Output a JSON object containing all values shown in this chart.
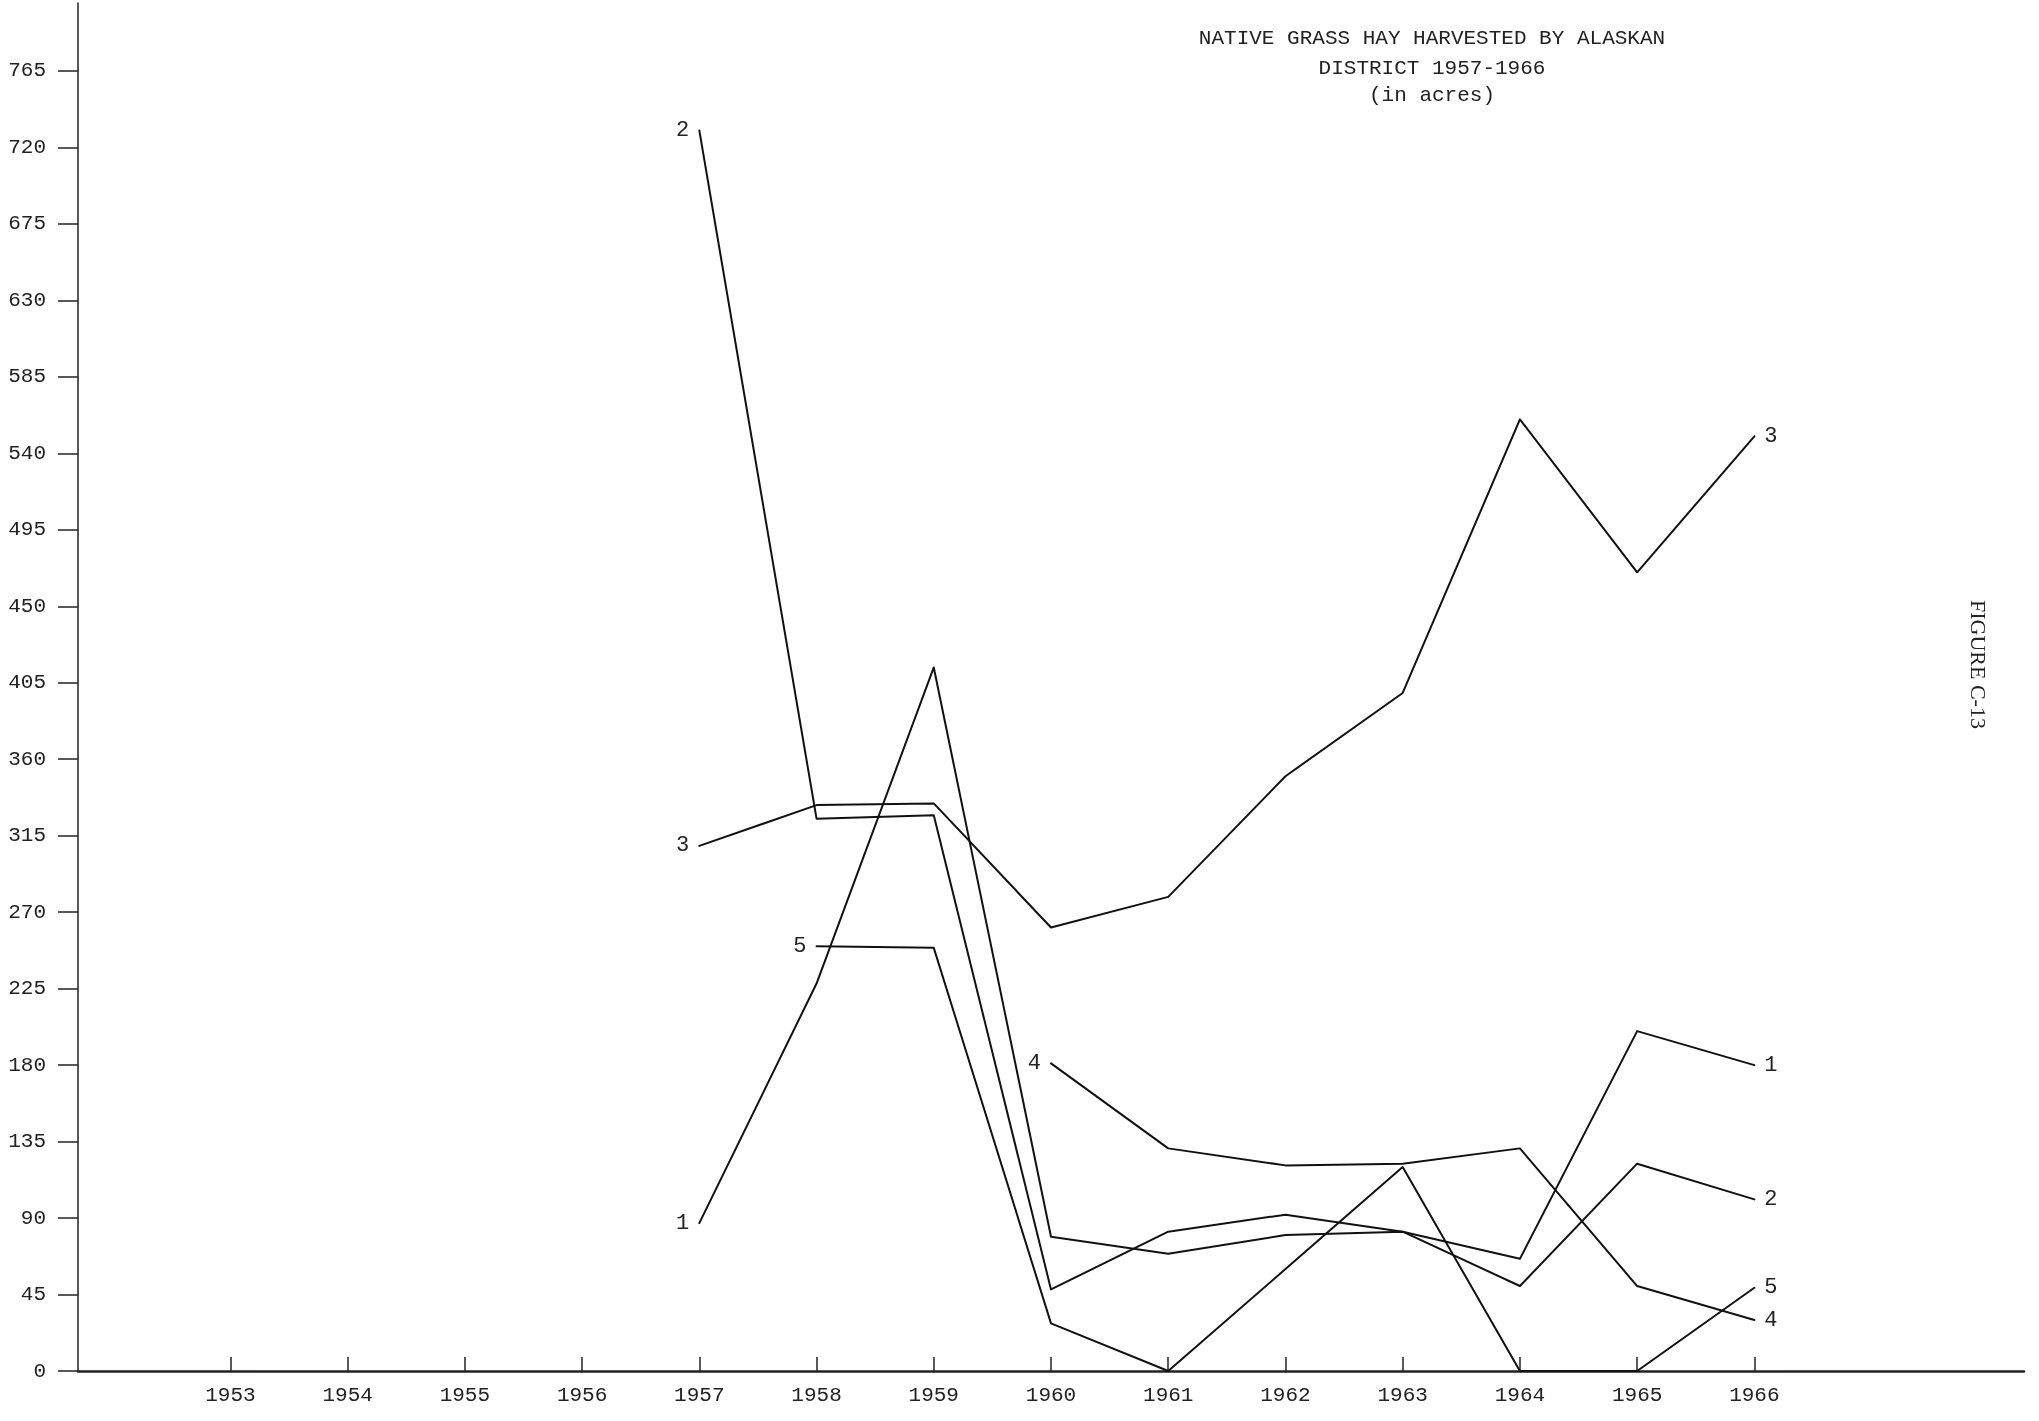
{
  "chart_data": {
    "type": "line",
    "title": "NATIVE GRASS HAY HARVESTED BY ALASKAN\nDISTRICT 1957-1966",
    "subtitle": "(in acres)",
    "annotations": [
      "FIGURE C-13"
    ],
    "xlim": [
      1951.7,
      1968.3
    ],
    "xticks": [
      1953,
      1954,
      1955,
      1956,
      1957,
      1958,
      1959,
      1960,
      1961,
      1962,
      1963,
      1964,
      1965,
      1966
    ],
    "ylim": [
      0,
      805
    ],
    "yticks": [
      0,
      45,
      90,
      135,
      180,
      225,
      270,
      315,
      360,
      405,
      450,
      495,
      540,
      585,
      630,
      675,
      720,
      765
    ],
    "grid": false,
    "legend": false,
    "marker": "none",
    "line_style": "solid",
    "series": [
      {
        "name": "1",
        "color": "#111111",
        "x": [
          1957,
          1958,
          1959,
          1960,
          1961,
          1962,
          1963,
          1964,
          1965,
          1966
        ],
        "values": [
          87,
          228,
          414,
          79,
          69,
          80,
          82,
          66,
          200,
          180
        ]
      },
      {
        "name": "2",
        "color": "#111111",
        "x": [
          1957,
          1958,
          1959,
          1960,
          1961,
          1962,
          1963,
          1964,
          1965,
          1966
        ],
        "values": [
          730,
          325,
          327,
          48,
          82,
          92,
          82,
          50,
          122,
          101
        ]
      },
      {
        "name": "3",
        "color": "#111111",
        "x": [
          1957,
          1958,
          1959,
          1960,
          1961,
          1962,
          1963,
          1964,
          1965,
          1966
        ],
        "values": [
          309,
          333,
          334,
          261,
          279,
          350,
          399,
          560,
          470,
          550
        ]
      },
      {
        "name": "4",
        "color": "#111111",
        "x": [
          1960,
          1961,
          1962,
          1963,
          1964,
          1965,
          1966
        ],
        "values": [
          181,
          131,
          121,
          122,
          131,
          50,
          30
        ]
      },
      {
        "name": "5",
        "color": "#111111",
        "x": [
          1958,
          1959,
          1960,
          1961,
          1962,
          1963,
          1964,
          1965,
          1966
        ],
        "values": [
          250,
          249,
          28,
          0,
          60,
          120,
          0,
          0,
          49
        ]
      }
    ]
  }
}
